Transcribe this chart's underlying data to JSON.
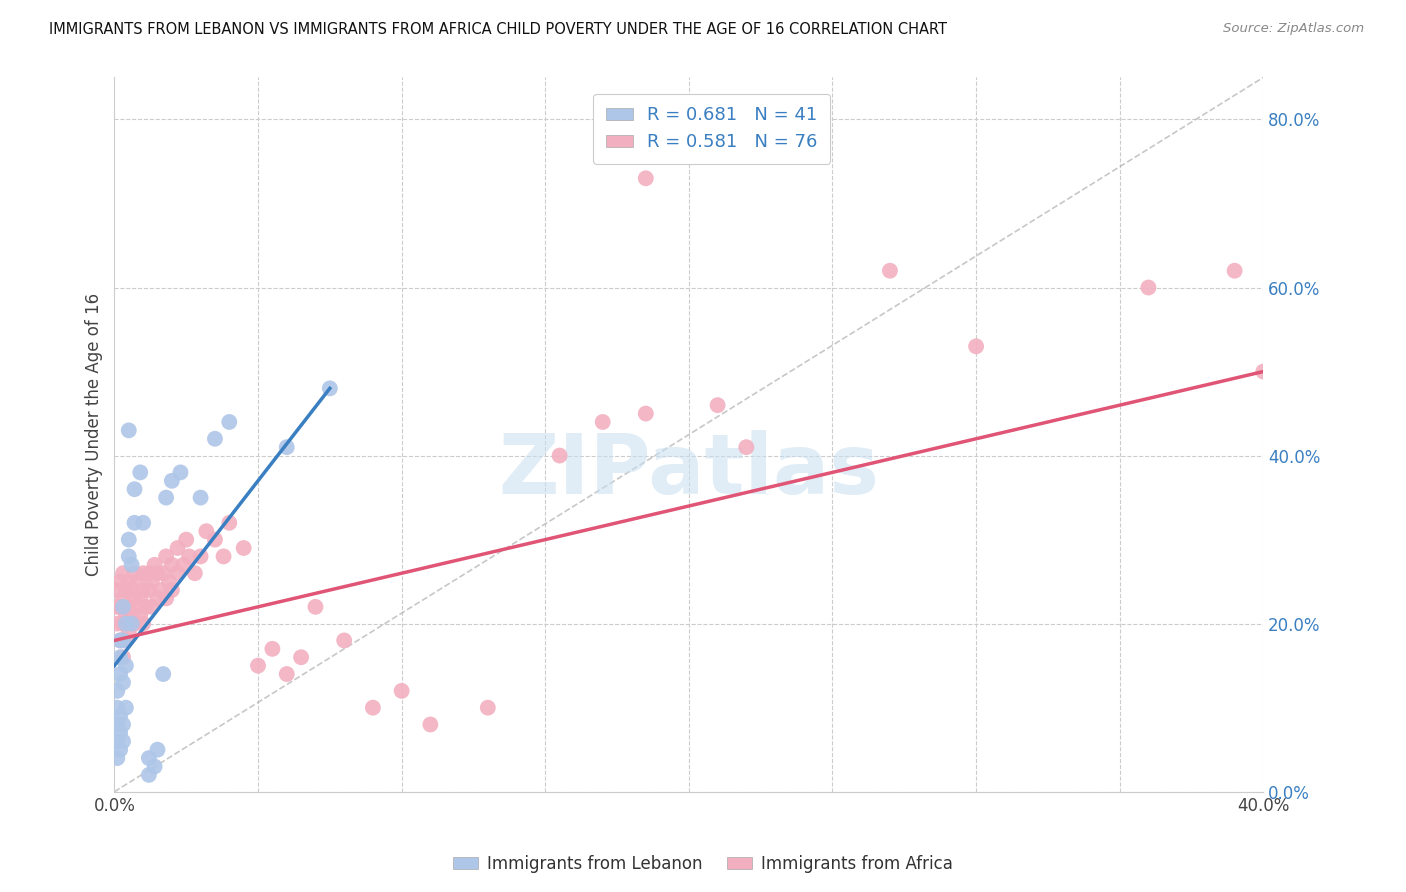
{
  "title": "IMMIGRANTS FROM LEBANON VS IMMIGRANTS FROM AFRICA CHILD POVERTY UNDER THE AGE OF 16 CORRELATION CHART",
  "source": "Source: ZipAtlas.com",
  "ylabel": "Child Poverty Under the Age of 16",
  "xlim": [
    0.0,
    0.4
  ],
  "ylim": [
    0.0,
    0.85
  ],
  "xticks": [
    0.0,
    0.05,
    0.1,
    0.15,
    0.2,
    0.25,
    0.3,
    0.35,
    0.4
  ],
  "yticks": [
    0.0,
    0.2,
    0.4,
    0.6,
    0.8
  ],
  "color_lebanon": "#aec6e8",
  "color_africa": "#f2afc0",
  "line_color_lebanon": "#3a7fc1",
  "line_color_africa": "#e05575",
  "diagonal_color": "#b0b0b0",
  "watermark_text": "ZIPatlas",
  "watermark_color": "#c8dff0",
  "lebanon_points": [
    [
      0.001,
      0.04
    ],
    [
      0.001,
      0.06
    ],
    [
      0.001,
      0.08
    ],
    [
      0.001,
      0.1
    ],
    [
      0.001,
      0.12
    ],
    [
      0.002,
      0.05
    ],
    [
      0.002,
      0.07
    ],
    [
      0.002,
      0.09
    ],
    [
      0.002,
      0.14
    ],
    [
      0.002,
      0.16
    ],
    [
      0.002,
      0.18
    ],
    [
      0.003,
      0.06
    ],
    [
      0.003,
      0.08
    ],
    [
      0.003,
      0.13
    ],
    [
      0.003,
      0.18
    ],
    [
      0.003,
      0.22
    ],
    [
      0.004,
      0.1
    ],
    [
      0.004,
      0.15
    ],
    [
      0.004,
      0.2
    ],
    [
      0.005,
      0.43
    ],
    [
      0.005,
      0.28
    ],
    [
      0.005,
      0.3
    ],
    [
      0.006,
      0.27
    ],
    [
      0.006,
      0.2
    ],
    [
      0.007,
      0.36
    ],
    [
      0.007,
      0.32
    ],
    [
      0.009,
      0.38
    ],
    [
      0.01,
      0.32
    ],
    [
      0.012,
      0.02
    ],
    [
      0.012,
      0.04
    ],
    [
      0.014,
      0.03
    ],
    [
      0.015,
      0.05
    ],
    [
      0.017,
      0.14
    ],
    [
      0.018,
      0.35
    ],
    [
      0.02,
      0.37
    ],
    [
      0.023,
      0.38
    ],
    [
      0.03,
      0.35
    ],
    [
      0.035,
      0.42
    ],
    [
      0.04,
      0.44
    ],
    [
      0.06,
      0.41
    ],
    [
      0.075,
      0.48
    ]
  ],
  "africa_points": [
    [
      0.001,
      0.2
    ],
    [
      0.001,
      0.22
    ],
    [
      0.001,
      0.24
    ],
    [
      0.002,
      0.18
    ],
    [
      0.002,
      0.22
    ],
    [
      0.002,
      0.25
    ],
    [
      0.003,
      0.16
    ],
    [
      0.003,
      0.2
    ],
    [
      0.003,
      0.23
    ],
    [
      0.003,
      0.26
    ],
    [
      0.004,
      0.18
    ],
    [
      0.004,
      0.21
    ],
    [
      0.004,
      0.24
    ],
    [
      0.005,
      0.19
    ],
    [
      0.005,
      0.22
    ],
    [
      0.005,
      0.25
    ],
    [
      0.006,
      0.21
    ],
    [
      0.006,
      0.24
    ],
    [
      0.007,
      0.2
    ],
    [
      0.007,
      0.23
    ],
    [
      0.007,
      0.26
    ],
    [
      0.008,
      0.22
    ],
    [
      0.008,
      0.25
    ],
    [
      0.009,
      0.21
    ],
    [
      0.009,
      0.23
    ],
    [
      0.01,
      0.2
    ],
    [
      0.01,
      0.24
    ],
    [
      0.01,
      0.26
    ],
    [
      0.011,
      0.22
    ],
    [
      0.012,
      0.24
    ],
    [
      0.012,
      0.26
    ],
    [
      0.013,
      0.22
    ],
    [
      0.013,
      0.25
    ],
    [
      0.014,
      0.27
    ],
    [
      0.015,
      0.23
    ],
    [
      0.015,
      0.26
    ],
    [
      0.016,
      0.24
    ],
    [
      0.017,
      0.26
    ],
    [
      0.018,
      0.23
    ],
    [
      0.018,
      0.28
    ],
    [
      0.019,
      0.25
    ],
    [
      0.02,
      0.27
    ],
    [
      0.02,
      0.24
    ],
    [
      0.022,
      0.26
    ],
    [
      0.022,
      0.29
    ],
    [
      0.024,
      0.27
    ],
    [
      0.025,
      0.3
    ],
    [
      0.026,
      0.28
    ],
    [
      0.028,
      0.26
    ],
    [
      0.03,
      0.28
    ],
    [
      0.032,
      0.31
    ],
    [
      0.035,
      0.3
    ],
    [
      0.038,
      0.28
    ],
    [
      0.04,
      0.32
    ],
    [
      0.045,
      0.29
    ],
    [
      0.05,
      0.15
    ],
    [
      0.055,
      0.17
    ],
    [
      0.06,
      0.14
    ],
    [
      0.065,
      0.16
    ],
    [
      0.07,
      0.22
    ],
    [
      0.08,
      0.18
    ],
    [
      0.09,
      0.1
    ],
    [
      0.1,
      0.12
    ],
    [
      0.11,
      0.08
    ],
    [
      0.13,
      0.1
    ],
    [
      0.155,
      0.4
    ],
    [
      0.17,
      0.44
    ],
    [
      0.185,
      0.45
    ],
    [
      0.185,
      0.73
    ],
    [
      0.21,
      0.46
    ],
    [
      0.22,
      0.41
    ],
    [
      0.27,
      0.62
    ],
    [
      0.3,
      0.53
    ],
    [
      0.36,
      0.6
    ],
    [
      0.39,
      0.62
    ],
    [
      0.4,
      0.5
    ]
  ],
  "leb_line": [
    0.0,
    0.075,
    0.15,
    0.18,
    0.48
  ],
  "afr_line_x": [
    0.0,
    0.4
  ],
  "afr_line_y": [
    0.18,
    0.5
  ]
}
